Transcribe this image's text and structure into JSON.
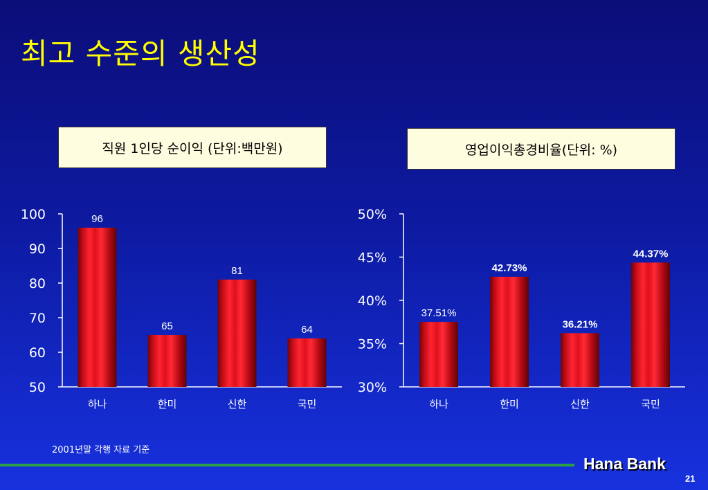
{
  "slide": {
    "title": "최고 수준의 생산성",
    "footnote": "2001년말 각행 자료 기준",
    "brand": "Hana Bank",
    "page_number": "21"
  },
  "chart_data": [
    {
      "type": "bar",
      "title": "직원 1인당 순이익 (단위:백만원)",
      "categories": [
        "하나",
        "한미",
        "신한",
        "국민"
      ],
      "values": [
        96,
        65,
        81,
        64
      ],
      "data_labels": [
        "96",
        "65",
        "81",
        "64"
      ],
      "yticks": [
        "100",
        "90",
        "80",
        "70",
        "60",
        "50"
      ],
      "ylim": [
        50,
        100
      ],
      "bar_color": "#d0101a",
      "grid": false
    },
    {
      "type": "bar",
      "title": "영업이익총경비율(단위: %)",
      "categories": [
        "하나",
        "한미",
        "신한",
        "국민"
      ],
      "values": [
        37.51,
        42.73,
        36.21,
        44.37
      ],
      "data_labels": [
        "37.51%",
        "42.73%",
        "36.21%",
        "44.37%"
      ],
      "yticks": [
        "50%",
        "45%",
        "40%",
        "35%",
        "30%"
      ],
      "ylim": [
        30,
        50
      ],
      "bar_color": "#d0101a",
      "grid": false
    }
  ]
}
